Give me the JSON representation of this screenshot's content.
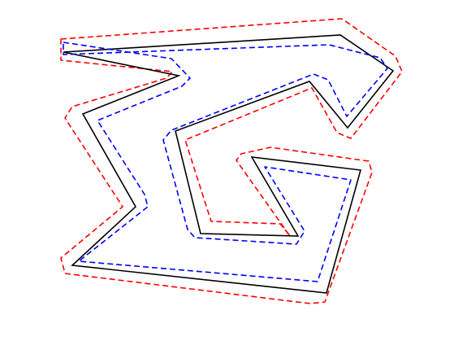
{
  "figure": {
    "background_color": "#ffffff",
    "paths": [
      {
        "id": "original-polygon",
        "stroke_color": "#000000",
        "dash": "solid"
      },
      {
        "id": "outer-offset-polygon",
        "stroke_color": "#ff0000",
        "dash": "dashed"
      },
      {
        "id": "inner-offset-polygon",
        "stroke_color": "#0000ff",
        "dash": "dashed"
      }
    ]
  }
}
